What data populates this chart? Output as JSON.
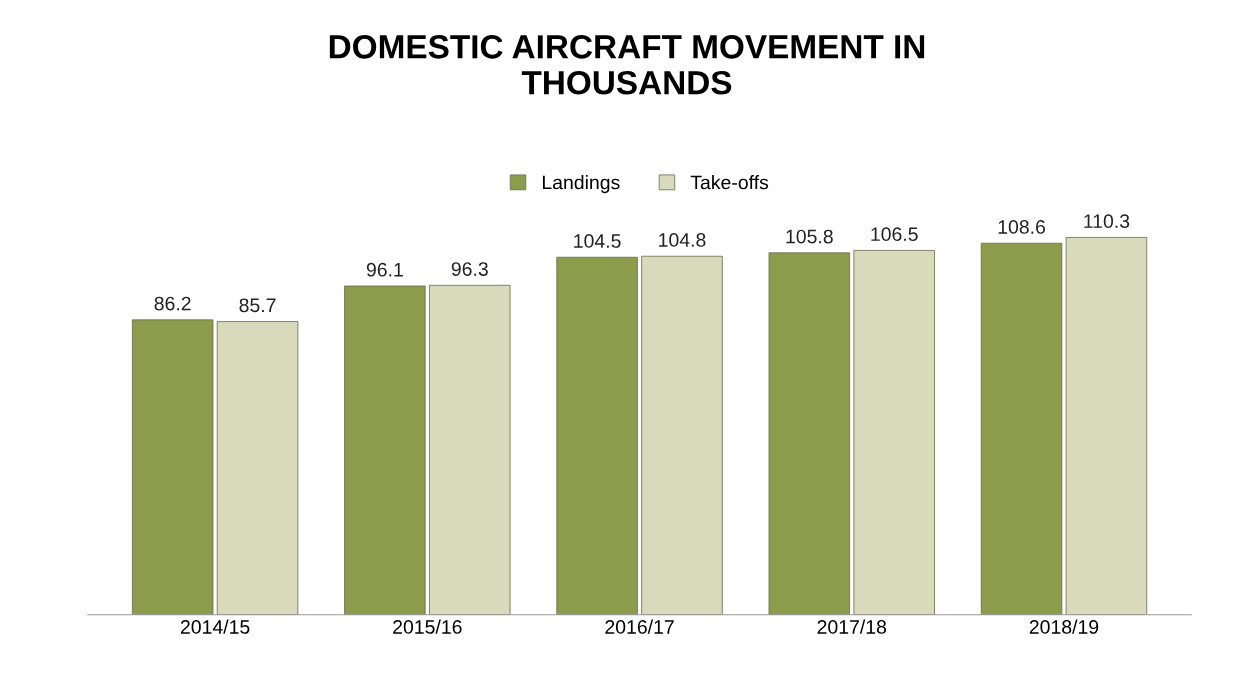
{
  "chart_data": {
    "type": "bar",
    "title": "DOMESTIC AIRCRAFT MOVEMENT IN\nTHOUSANDS",
    "categories": [
      "2014/15",
      "2015/16",
      "2016/17",
      "2017/18",
      "2018/19"
    ],
    "series": [
      {
        "name": "Landings",
        "color": "#8c9c4c",
        "values": [
          86.2,
          96.1,
          104.5,
          105.8,
          108.6
        ]
      },
      {
        "name": "Take-offs",
        "color": "#d9dabb",
        "values": [
          85.7,
          96.3,
          104.8,
          106.5,
          110.3
        ]
      }
    ],
    "data_labels": true,
    "legend": "top",
    "grid": false,
    "tick_labels": "x"
  }
}
